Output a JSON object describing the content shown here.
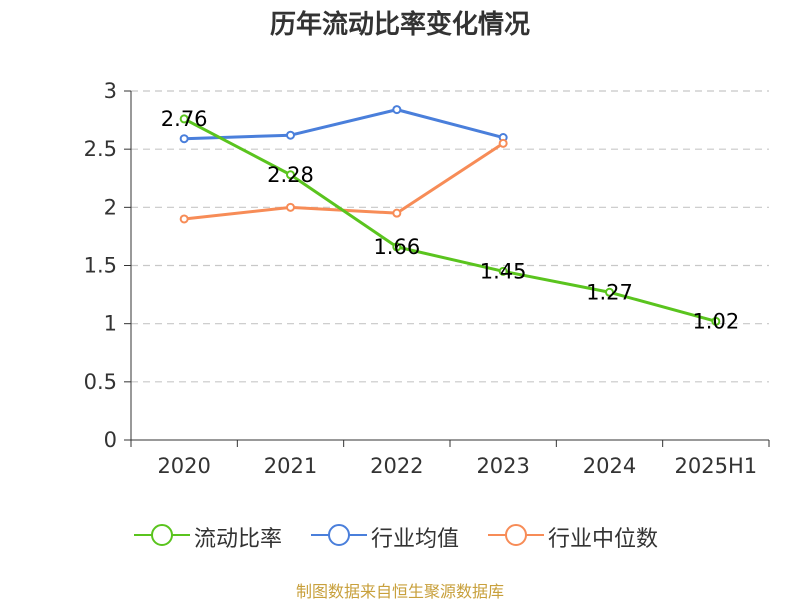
{
  "title": "历年流动比率变化情况",
  "source": "制图数据来自恒生聚源数据库",
  "colors": {
    "series_0": "#5ac41e",
    "series_1": "#4a7fdb",
    "series_2": "#f78c57",
    "grid": "#c8c8c8",
    "axis": "#333333"
  },
  "chart_data": {
    "type": "line",
    "title": "历年流动比率变化情况",
    "categories": [
      "2020",
      "2021",
      "2022",
      "2023",
      "2024",
      "2025H1"
    ],
    "ylim": [
      0,
      3
    ],
    "yticks": [
      "0",
      "0.5",
      "1",
      "1.5",
      "2",
      "2.5",
      "3"
    ],
    "grid": true,
    "legend_position": "bottom",
    "series": [
      {
        "name": "流动比率",
        "values": [
          2.76,
          2.28,
          1.66,
          1.45,
          1.27,
          1.02
        ],
        "labels": [
          "2.76",
          "2.28",
          "1.66",
          "1.45",
          "1.27",
          "1.02"
        ]
      },
      {
        "name": "行业均值",
        "values": [
          2.59,
          2.62,
          2.84,
          2.6,
          null,
          null
        ]
      },
      {
        "name": "行业中位数",
        "values": [
          1.9,
          2.0,
          1.95,
          2.55,
          null,
          null
        ]
      }
    ]
  }
}
